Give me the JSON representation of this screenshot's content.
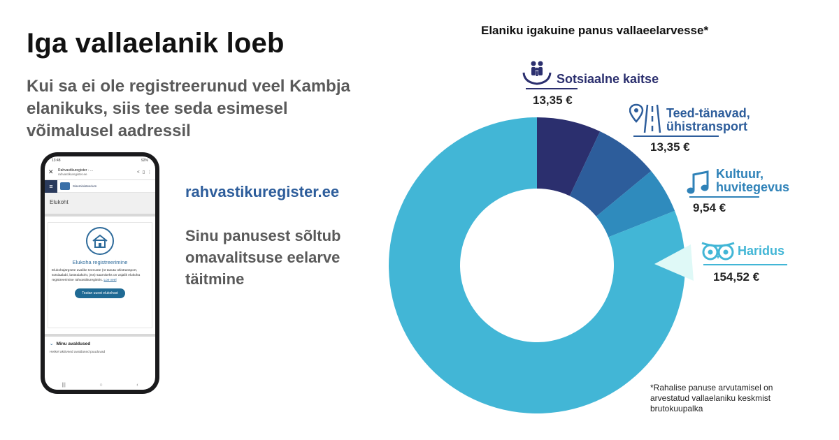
{
  "headline": "Iga vallaelanik loeb",
  "subtitle": "Kui sa ei ole registreerunud veel Kambja elanikuks, siis tee seda esimesel võimalusel aadressil",
  "website": "rahvastikuregister.ee",
  "note": "Sinu panusest sõltub omavalitsuse eelarve täitmine",
  "phone": {
    "status_time": "13:48",
    "status_right": "92%",
    "tab_title": "Rahvastikuregister - ...",
    "url": "rahvastikuregister.ee",
    "nav_label": "Siseministeerium",
    "breadcrumb": "Elukoht",
    "card_title": "Elukoha registreerimine",
    "card_body": "Elukohajärgsete avalike teenuste (nt tasuta ühistransport, sotsiaalabi, lasteaiakoht, jms) saamiseks on vajalik elukoha registreerimine rahvastikuregistris.",
    "card_link": "Loe veel",
    "card_button": "Teatan uuest elukohast",
    "section_title": "Minu avaldused",
    "section_sub": "Hetkel aktiivsed avaldused puuduvad"
  },
  "footnote": "*Rahalise panuse arvutamisel on arvestatud vallaelaniku keskmist brutokuupalka",
  "chart_data": {
    "type": "pie",
    "title": "Elaniku igakuine panus vallaeelarvesse*",
    "donut": true,
    "unit": "€",
    "categories": [
      "Sotsiaalne kaitse",
      "Teed-tänavad, ühistransport",
      "Kultuur, huvitegevus",
      "Haridus"
    ],
    "labels": [
      {
        "lines": [
          "Sotsiaalne kaitse"
        ],
        "value_label": "13,35 €",
        "icon": "family-hands-icon",
        "color": "#2b2f6e"
      },
      {
        "lines": [
          "Teed-tänavad,",
          "ühistransport"
        ],
        "value_label": "13,35 €",
        "icon": "road-pin-icon",
        "color": "#2d5d9b"
      },
      {
        "lines": [
          "Kultuur,",
          "huvitegevus"
        ],
        "value_label": "9,54  €",
        "icon": "music-note-icon",
        "color": "#2f82b8"
      },
      {
        "lines": [
          "Haridus"
        ],
        "value_label": "154,52 €",
        "icon": "owl-eyes-icon",
        "color": "#42b6d6"
      }
    ],
    "values": [
      13.35,
      13.35,
      9.54,
      154.52
    ],
    "colors": [
      "#2b2f6e",
      "#2d5d9b",
      "#2f8bbd",
      "#42b6d6"
    ],
    "highlight_color": "#dff9f7",
    "legend": "none"
  }
}
